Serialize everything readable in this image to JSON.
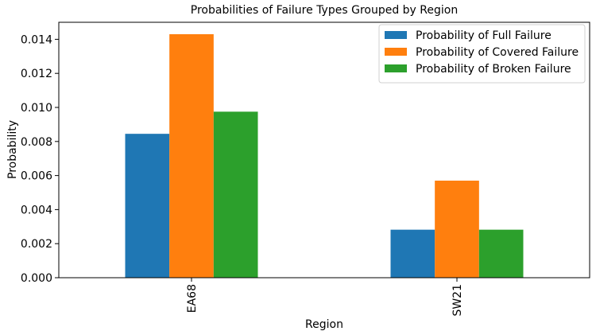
{
  "chart_data": {
    "type": "bar",
    "title": "Probabilities of Failure Types Grouped by Region",
    "xlabel": "Region",
    "ylabel": "Probability",
    "categories": [
      "EA68",
      "SW21"
    ],
    "series": [
      {
        "name": "Probability of Full Failure",
        "color": "#1f77b4",
        "values": [
          0.00845,
          0.00282
        ]
      },
      {
        "name": "Probability of Covered Failure",
        "color": "#ff7f0e",
        "values": [
          0.0143,
          0.0057
        ]
      },
      {
        "name": "Probability of Broken Failure",
        "color": "#2ca02c",
        "values": [
          0.00975,
          0.00282
        ]
      }
    ],
    "yticks": [
      "0.000",
      "0.002",
      "0.004",
      "0.006",
      "0.008",
      "0.010",
      "0.012",
      "0.014"
    ],
    "ylim": [
      0,
      0.015
    ],
    "grid": false,
    "legend_position": "top-right"
  }
}
